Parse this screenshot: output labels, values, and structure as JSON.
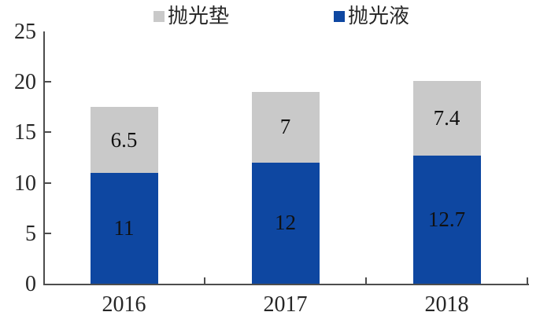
{
  "chart_data": {
    "type": "bar",
    "stacked": true,
    "title": "",
    "xlabel": "",
    "ylabel": "",
    "categories": [
      "2016",
      "2017",
      "2018"
    ],
    "series": [
      {
        "name": "抛光液",
        "color": "#0e47a1",
        "values": [
          11,
          12,
          12.7
        ]
      },
      {
        "name": "抛光垫",
        "color": "#c9c9c9",
        "values": [
          6.5,
          7,
          7.4
        ]
      }
    ],
    "legend": [
      {
        "label": "抛光垫",
        "color": "#c9c9c9"
      },
      {
        "label": "抛光液",
        "color": "#0e47a1"
      }
    ],
    "legend_position": "top",
    "grid": false,
    "ylim": [
      0,
      25
    ],
    "y_ticks": [
      0,
      5,
      10,
      15,
      20,
      25
    ]
  },
  "colors": {
    "axis": "#4d4d4d",
    "text": "#262626",
    "bar_label": "#111111",
    "background": "#ffffff"
  }
}
